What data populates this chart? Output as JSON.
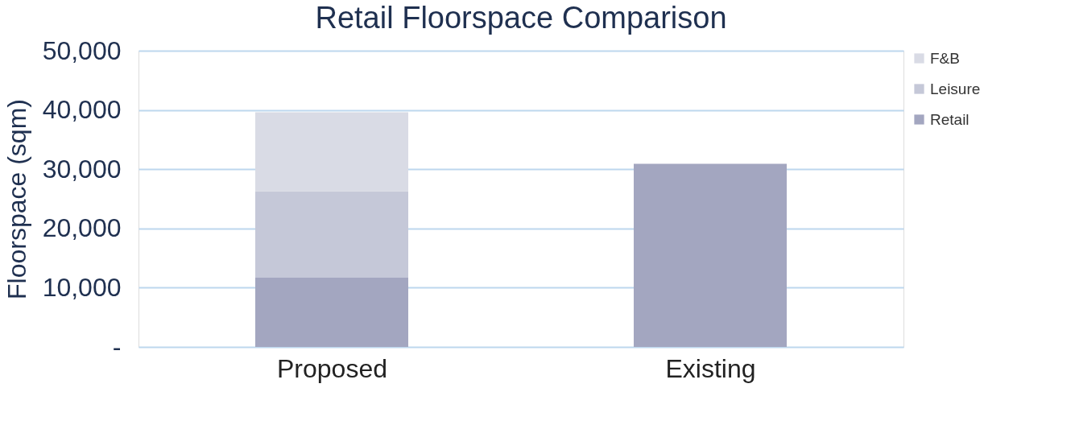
{
  "chart_data": {
    "type": "bar",
    "title": "Retail Floorspace Comparison",
    "ylabel": "Floorspace (sqm)",
    "categories": [
      "Proposed",
      "Existing"
    ],
    "stacked": true,
    "series": [
      {
        "name": "Retail",
        "color": "#a3a6c0",
        "values": [
          11700,
          30900
        ]
      },
      {
        "name": "Leisure",
        "color": "#c5c8d8",
        "values": [
          14600,
          null
        ]
      },
      {
        "name": "F&B",
        "color": "#d9dbe5",
        "values": [
          13300,
          null
        ]
      }
    ],
    "ylim": [
      0,
      50000
    ],
    "yticks": [
      {
        "value": 0,
        "label": "-"
      },
      {
        "value": 10000,
        "label": "10,000"
      },
      {
        "value": 20000,
        "label": "20,000"
      },
      {
        "value": 30000,
        "label": "30,000"
      },
      {
        "value": 40000,
        "label": "40,000"
      },
      {
        "value": 50000,
        "label": "50,000"
      }
    ],
    "grid": "y",
    "legend": "right"
  }
}
